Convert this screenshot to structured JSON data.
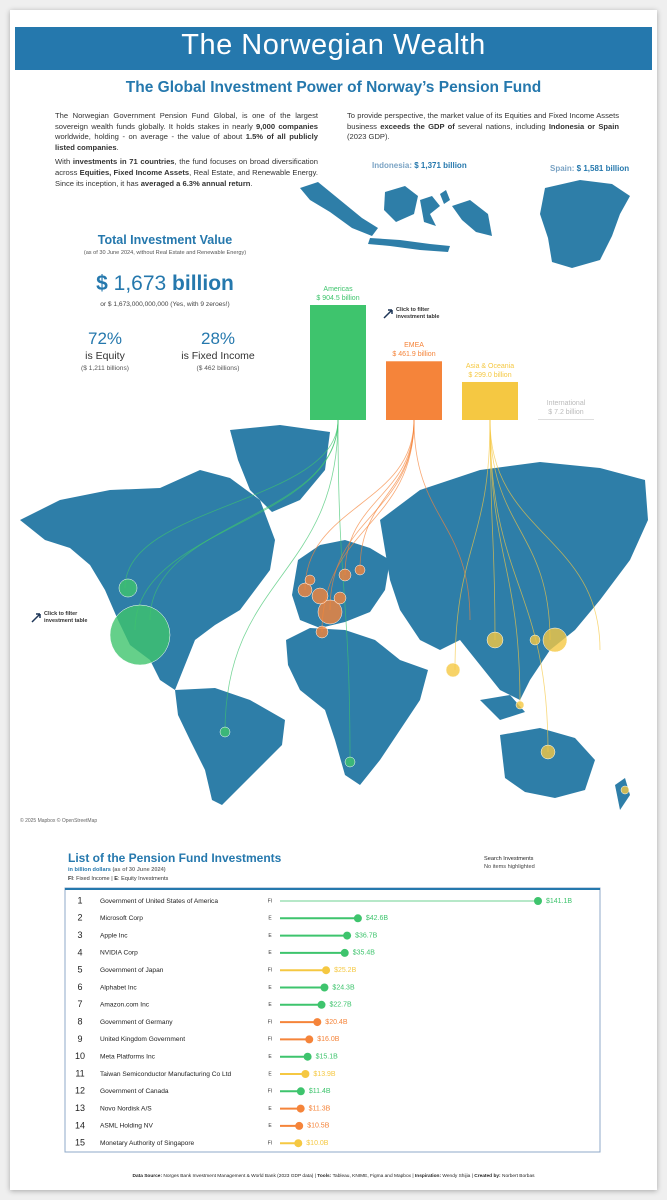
{
  "header": {
    "title": "The Norwegian Wealth",
    "subtitle": "The Global Investment Power of Norway’s Pension Fund"
  },
  "intro": {
    "left": [
      [
        {
          "text": "The Norwegian Government Pension Fund Global, is one of the largest sovereign wealth funds globally. It holds stakes in nearly "
        },
        {
          "text": "9,000 companies",
          "bold": true
        },
        {
          "text": " worldwide, holding - on average - the value of about "
        },
        {
          "text": "1.5% of all publicly listed companies",
          "bold": true
        },
        {
          "text": "."
        }
      ],
      [
        {
          "text": "With "
        },
        {
          "text": "investments in 71 countries",
          "bold": true
        },
        {
          "text": ", the fund focuses on broad diversification across "
        },
        {
          "text": "Equities, Fixed Income Assets",
          "bold": true
        },
        {
          "text": ", Real Estate, and Renewable Energy. Since its inception, it has "
        },
        {
          "text": "averaged a 6.3% annual return",
          "bold": true
        },
        {
          "text": "."
        }
      ]
    ],
    "right": [
      [
        {
          "text": "To provide perspective, the market value of its Equities and Fixed Income Assets business "
        },
        {
          "text": "exceeds the GDP of",
          "bold": true
        },
        {
          "text": " several nations, including "
        },
        {
          "text": "Indonesia or Spain",
          "bold": true
        },
        {
          "text": " (2023 GDP)."
        }
      ]
    ]
  },
  "comparison": {
    "indonesia": {
      "label": "Indonesia: ",
      "value": "$ 1,371 billion"
    },
    "spain": {
      "label": "Spain: ",
      "value": "$ 1,581 billion"
    }
  },
  "total": {
    "title": "Total Investment Value",
    "note": "(as of 30 June 2024, without Real Estate and Renewable Energy)",
    "currency": "$",
    "amount": "1,673",
    "unit": "billion",
    "full": "or $ 1,673,000,000,000 (Yes, with 9 zeroes!)",
    "equity": {
      "pct": "72%",
      "label": "is Equity",
      "amount": "($ 1,211 billions)"
    },
    "fixed": {
      "pct": "28%",
      "label": "is Fixed Income",
      "amount": "($ 462 billions)"
    }
  },
  "hint": {
    "bold": "Click",
    "rest": "to filter",
    "line2": "investment table"
  },
  "map_credit": "© 2025 Mapbox © OpenStreetMap",
  "chart_data": [
    {
      "type": "bar",
      "categories": [
        "Americas",
        "EMEA",
        "Asia & Oceania",
        "International"
      ],
      "values": [
        904.5,
        461.9,
        299.0,
        7.2
      ],
      "value_labels": [
        "$ 904.5 billion",
        "$ 461.9 billion",
        "$ 299.0 billion",
        "$ 7.2 billion"
      ],
      "colors": [
        "#3ec46d",
        "#f5843a",
        "#f5c842",
        "#dcdcdc"
      ]
    },
    {
      "type": "lollipop",
      "title": "List of the Pension Fund Investments",
      "subtitle": "in billion dollars",
      "subtitle_note": " (as of 30 June 2024)",
      "legend": [
        {
          "text": "FI",
          "bold": true
        },
        {
          "text": ": Fixed Income | "
        },
        {
          "text": "E",
          "bold": true
        },
        {
          "text": ": Equity Investments"
        }
      ],
      "search": {
        "label": "Search Investments",
        "status": "No items highlighted"
      },
      "ranks": [
        "1",
        "2",
        "3",
        "4",
        "5",
        "6",
        "7",
        "8",
        "9",
        "10",
        "11",
        "12",
        "13",
        "14",
        "15"
      ],
      "categories": [
        "Government of United States of America",
        "Microsoft Corp",
        "Apple Inc",
        "NVIDIA Corp",
        "Government of Japan",
        "Alphabet Inc",
        "Amazon.com Inc",
        "Government of Germany",
        "United Kingdom Government",
        "Meta Platforms Inc",
        "Taiwan Semiconductor Manufacturing Co Ltd",
        "Government of Canada",
        "Novo Nordisk A/S",
        "ASML Holding NV",
        "Monetary Authority of Singapore"
      ],
      "kinds": [
        "FI",
        "E",
        "E",
        "E",
        "FI",
        "E",
        "E",
        "FI",
        "FI",
        "E",
        "E",
        "FI",
        "E",
        "E",
        "FI"
      ],
      "values": [
        141.1,
        42.6,
        36.7,
        35.4,
        25.2,
        24.3,
        22.7,
        20.4,
        16.0,
        15.1,
        13.9,
        11.4,
        11.3,
        10.5,
        10.0
      ],
      "value_labels": [
        "$141.1B",
        "$42.6B",
        "$36.7B",
        "$35.4B",
        "$25.2B",
        "$24.3B",
        "$22.7B",
        "$20.4B",
        "$16.0B",
        "$15.1B",
        "$13.9B",
        "$11.4B",
        "$11.3B",
        "$10.5B",
        "$10.0B"
      ],
      "colors": [
        "#3ec46d",
        "#3ec46d",
        "#3ec46d",
        "#3ec46d",
        "#f5c842",
        "#3ec46d",
        "#3ec46d",
        "#f5843a",
        "#f5843a",
        "#3ec46d",
        "#f5c842",
        "#3ec46d",
        "#f5843a",
        "#f5843a",
        "#f5c842"
      ]
    }
  ],
  "footer": [
    {
      "text": "Data Source: ",
      "bold": true
    },
    {
      "text": "Norges Bank Investment Management & World Bank (2023 GDP data) | "
    },
    {
      "text": "Tools: ",
      "bold": true
    },
    {
      "text": "Tableau, KNIME, Figma and Mapbox | "
    },
    {
      "text": "Inspiration: ",
      "bold": true
    },
    {
      "text": "Wendy Shijia | "
    },
    {
      "text": "Created by: ",
      "bold": true
    },
    {
      "text": "Norbert Borbas"
    }
  ]
}
